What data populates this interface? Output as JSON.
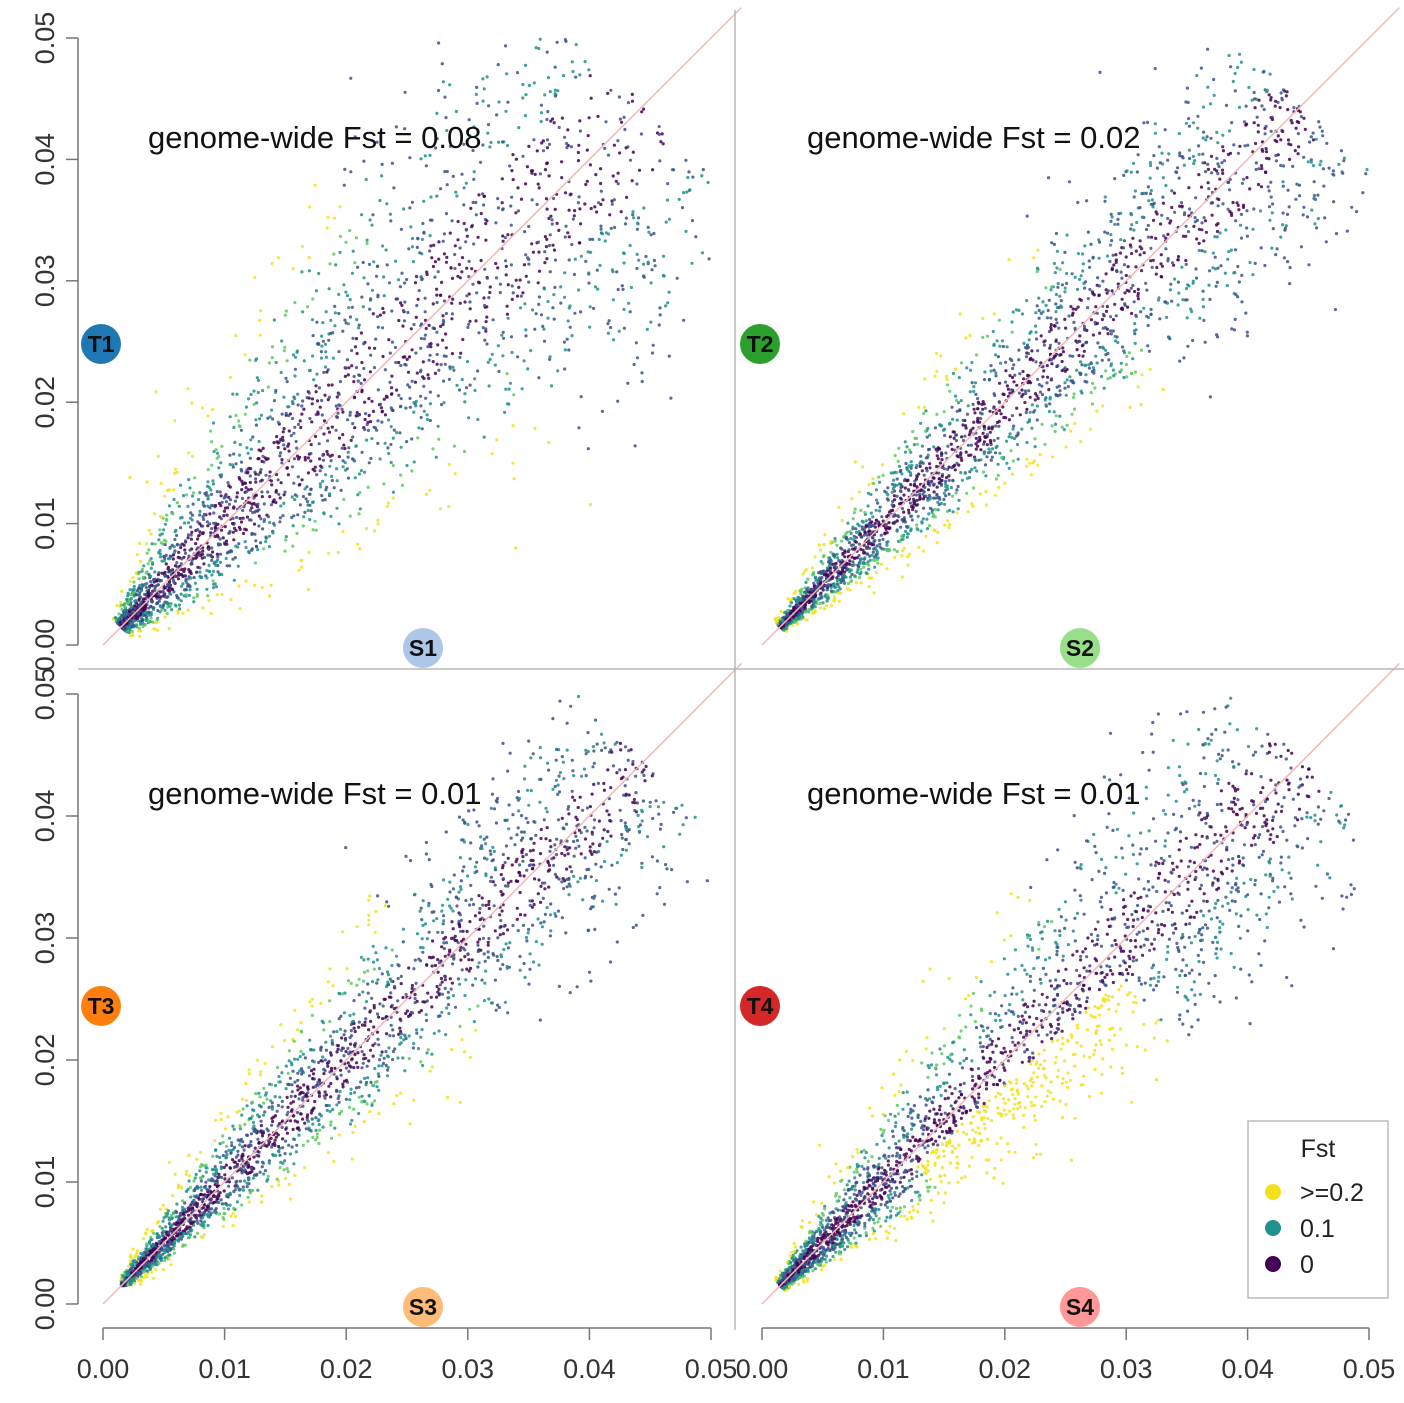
{
  "chart_data": [
    {
      "type": "scatter",
      "annotation": "genome-wide Fst = 0.08",
      "label_t": "T1",
      "label_s": "S1",
      "color_t": "#1f77b4",
      "color_s": "#aec7e8",
      "xlim": [
        0,
        0.05
      ],
      "ylim": [
        0,
        0.05
      ],
      "spread": 0.26,
      "skew": 0.0,
      "xmin_floor": 0.0003,
      "ymin_floor": 0.0003,
      "yellow_bias": "vertical"
    },
    {
      "type": "scatter",
      "annotation": "genome-wide Fst = 0.02",
      "label_t": "T2",
      "label_s": "S2",
      "color_t": "#2ca02c",
      "color_s": "#98df8a",
      "xlim": [
        0,
        0.05
      ],
      "ylim": [
        0,
        0.05
      ],
      "spread": 0.14,
      "skew": -0.1,
      "xmin_floor": 0.0005,
      "ymin_floor": 0.0005,
      "yellow_bias": "horizontal"
    },
    {
      "type": "scatter",
      "annotation": "genome-wide Fst = 0.01",
      "label_t": "T3",
      "label_s": "S3",
      "color_t": "#ff7f0e",
      "color_s": "#ffbb78",
      "xlim": [
        0,
        0.05
      ],
      "ylim": [
        0,
        0.05
      ],
      "spread": 0.13,
      "skew": 0.05,
      "xmin_floor": 0.0015,
      "ymin_floor": 0.0015,
      "yellow_bias": "horizontal"
    },
    {
      "type": "scatter",
      "annotation": "genome-wide Fst = 0.01",
      "label_t": "T4",
      "label_s": "S4",
      "color_t": "#d62728",
      "color_s": "#ff9896",
      "xlim": [
        0,
        0.05
      ],
      "ylim": [
        0,
        0.05
      ],
      "spread": 0.16,
      "skew": -0.12,
      "xmin_floor": 0.001,
      "ymin_floor": 0.001,
      "yellow_bias": "horizontal-strong"
    }
  ],
  "axes": {
    "x_ticks": [
      "0.00",
      "0.01",
      "0.02",
      "0.03",
      "0.04",
      "0.05"
    ],
    "y_ticks": [
      "0.00",
      "0.01",
      "0.02",
      "0.03",
      "0.04",
      "0.05"
    ],
    "tick_values": [
      0,
      0.01,
      0.02,
      0.03,
      0.04,
      0.05
    ]
  },
  "legend": {
    "title": "Fst",
    "items": [
      {
        "label": ">=0.2",
        "color": "#f2e21e"
      },
      {
        "label": "0.1",
        "color": "#21918c"
      },
      {
        "label": "0",
        "color": "#440154"
      }
    ]
  },
  "colors": {
    "diagonal": "#f4b6b6",
    "divider": "#b8b8b8",
    "axis": "#777777"
  }
}
